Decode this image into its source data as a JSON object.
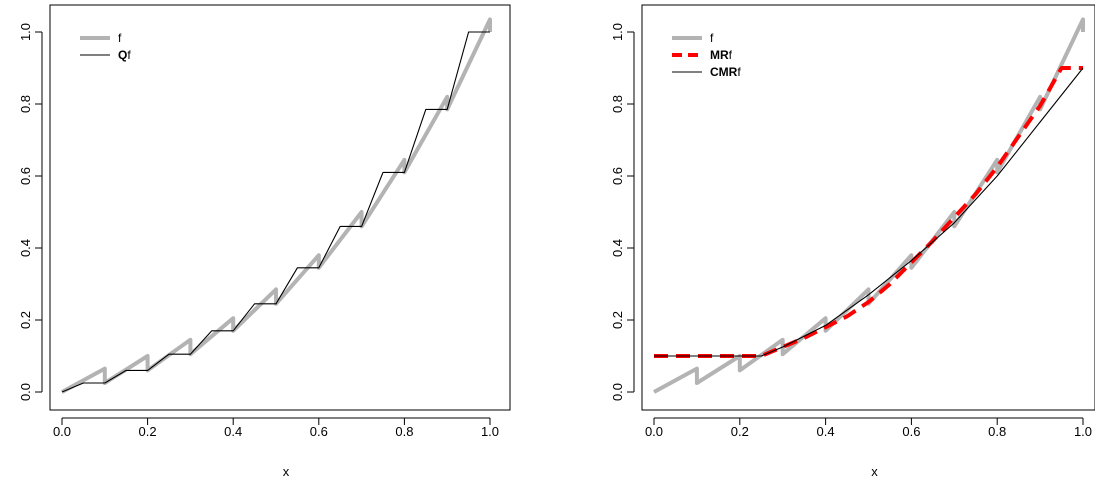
{
  "chart_data": [
    {
      "type": "line",
      "xlabel": "x",
      "ylabel": "",
      "xlim": [
        0,
        1
      ],
      "ylim": [
        0,
        1.03
      ],
      "xticks": [
        "0.0",
        "0.2",
        "0.4",
        "0.6",
        "0.8",
        "1.0"
      ],
      "yticks": [
        "0.0",
        "0.2",
        "0.4",
        "0.6",
        "0.8",
        "1.0"
      ],
      "grid": false,
      "legend_position": "top-left",
      "legend": [
        {
          "bold": "",
          "plain": "f",
          "color": "#b3b3b3",
          "style": "solid-thick"
        },
        {
          "bold": "Q",
          "plain": "f",
          "color": "#000000",
          "style": "solid-thin"
        }
      ],
      "series": [
        {
          "name": "f",
          "color": "#b3b3b3",
          "x": [
            0,
            0.1,
            0.1,
            0.2,
            0.2,
            0.3,
            0.3,
            0.4,
            0.4,
            0.5,
            0.5,
            0.6,
            0.6,
            0.7,
            0.7,
            0.8,
            0.8,
            0.9,
            0.9,
            1.0,
            1.0
          ],
          "y": [
            0,
            0.065,
            0.025,
            0.1,
            0.06,
            0.145,
            0.105,
            0.205,
            0.17,
            0.285,
            0.245,
            0.38,
            0.345,
            0.5,
            0.46,
            0.645,
            0.61,
            0.82,
            0.785,
            1.035,
            1.0
          ]
        },
        {
          "name": "Qf",
          "color": "#000000",
          "x": [
            0,
            0.05,
            0.1,
            0.15,
            0.2,
            0.25,
            0.3,
            0.35,
            0.4,
            0.45,
            0.5,
            0.55,
            0.6,
            0.65,
            0.7,
            0.75,
            0.8,
            0.85,
            0.9,
            0.95,
            1.0
          ],
          "y": [
            0,
            0.025,
            0.025,
            0.06,
            0.06,
            0.105,
            0.105,
            0.17,
            0.17,
            0.245,
            0.245,
            0.345,
            0.345,
            0.46,
            0.46,
            0.61,
            0.61,
            0.785,
            0.785,
            1.0,
            1.0
          ]
        }
      ]
    },
    {
      "type": "line",
      "xlabel": "x",
      "ylabel": "",
      "xlim": [
        0,
        1
      ],
      "ylim": [
        0,
        1.03
      ],
      "xticks": [
        "0.0",
        "0.2",
        "0.4",
        "0.6",
        "0.8",
        "1.0"
      ],
      "yticks": [
        "0.0",
        "0.2",
        "0.4",
        "0.6",
        "0.8",
        "1.0"
      ],
      "grid": false,
      "legend_position": "top-left",
      "legend": [
        {
          "bold": "",
          "plain": "f",
          "color": "#b3b3b3",
          "style": "solid-thick"
        },
        {
          "bold": "MR",
          "plain": "f",
          "color": "#ff0000",
          "style": "dashed-thick"
        },
        {
          "bold": "CMR",
          "plain": "f",
          "color": "#000000",
          "style": "solid-thin"
        }
      ],
      "series": [
        {
          "name": "f",
          "color": "#b3b3b3",
          "x": [
            0,
            0.1,
            0.1,
            0.2,
            0.2,
            0.3,
            0.3,
            0.4,
            0.4,
            0.5,
            0.5,
            0.6,
            0.6,
            0.7,
            0.7,
            0.8,
            0.8,
            0.9,
            0.9,
            1.0,
            1.0
          ],
          "y": [
            0,
            0.065,
            0.025,
            0.1,
            0.06,
            0.145,
            0.105,
            0.205,
            0.17,
            0.285,
            0.245,
            0.38,
            0.345,
            0.5,
            0.46,
            0.645,
            0.61,
            0.82,
            0.785,
            1.035,
            1.0
          ]
        },
        {
          "name": "MRf",
          "color": "#ff0000",
          "x": [
            0,
            0.25,
            0.3,
            0.35,
            0.4,
            0.45,
            0.5,
            0.55,
            0.6,
            0.65,
            0.7,
            0.75,
            0.8,
            0.85,
            0.9,
            0.95,
            1.0
          ],
          "y": [
            0.1,
            0.1,
            0.125,
            0.15,
            0.18,
            0.21,
            0.25,
            0.3,
            0.36,
            0.42,
            0.485,
            0.55,
            0.625,
            0.71,
            0.795,
            0.9,
            0.9
          ]
        },
        {
          "name": "CMRf",
          "color": "#000000",
          "x": [
            0,
            0.25,
            0.3,
            0.4,
            0.5,
            0.6,
            0.7,
            0.8,
            0.9,
            1.0
          ],
          "y": [
            0.1,
            0.1,
            0.125,
            0.185,
            0.27,
            0.365,
            0.47,
            0.6,
            0.75,
            0.9
          ]
        }
      ]
    }
  ]
}
